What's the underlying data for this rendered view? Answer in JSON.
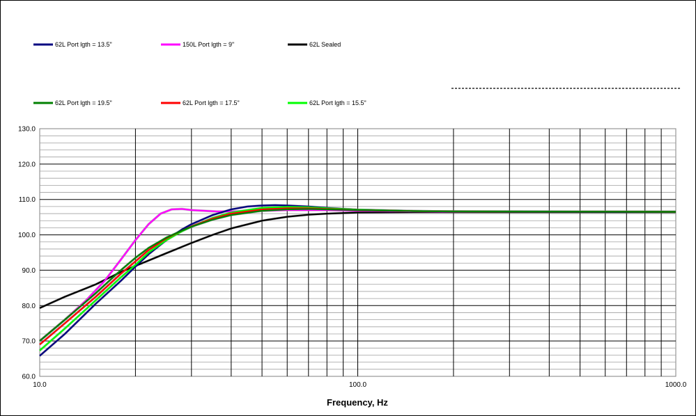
{
  "chart_data": {
    "type": "line",
    "title": "",
    "xlabel": "Frequency, Hz",
    "ylabel": "",
    "x_scale": "log",
    "xlim": [
      10,
      1000
    ],
    "ylim": [
      60,
      130
    ],
    "x_tick_labels": [
      "10.0",
      "100.0",
      "1000.0"
    ],
    "y_tick_labels": [
      "60.0",
      "70.0",
      "80.0",
      "90.0",
      "100.0",
      "110.0",
      "120.0",
      "130.0"
    ],
    "grid": true,
    "legend_position": "top",
    "series": [
      {
        "name": "62L Port lgth = 13.5\"",
        "color": "#000080",
        "points": [
          [
            10,
            65.8
          ],
          [
            12,
            72
          ],
          [
            15,
            80.5
          ],
          [
            18,
            87
          ],
          [
            20,
            91
          ],
          [
            22,
            94.5
          ],
          [
            25,
            98.5
          ],
          [
            28,
            101.5
          ],
          [
            30,
            103
          ],
          [
            35,
            105.6
          ],
          [
            40,
            107.2
          ],
          [
            45,
            108
          ],
          [
            50,
            108.3
          ],
          [
            55,
            108.4
          ],
          [
            60,
            108.3
          ],
          [
            70,
            108
          ],
          [
            80,
            107.6
          ],
          [
            100,
            107.1
          ],
          [
            150,
            106.7
          ],
          [
            200,
            106.6
          ],
          [
            300,
            106.5
          ],
          [
            1000,
            106.5
          ]
        ]
      },
      {
        "name": "150L Port lgth = 9\"",
        "color": "#ff00ff",
        "points": [
          [
            10,
            70
          ],
          [
            12,
            76
          ],
          [
            14,
            81.5
          ],
          [
            16,
            87
          ],
          [
            18,
            93
          ],
          [
            20,
            98.5
          ],
          [
            22,
            103
          ],
          [
            24,
            106
          ],
          [
            26,
            107.2
          ],
          [
            28,
            107.3
          ],
          [
            30,
            107
          ],
          [
            33,
            106.8
          ],
          [
            36,
            106.6
          ],
          [
            40,
            106.6
          ],
          [
            50,
            106.8
          ],
          [
            60,
            107
          ],
          [
            80,
            107
          ],
          [
            100,
            106.8
          ],
          [
            150,
            106.6
          ],
          [
            200,
            106.5
          ],
          [
            1000,
            106.5
          ]
        ]
      },
      {
        "name": "62L Sealed",
        "color": "#000000",
        "points": [
          [
            10,
            79.3
          ],
          [
            12,
            82.5
          ],
          [
            15,
            86
          ],
          [
            18,
            89.5
          ],
          [
            20,
            91.2
          ],
          [
            25,
            94.8
          ],
          [
            30,
            97.7
          ],
          [
            35,
            100
          ],
          [
            40,
            101.8
          ],
          [
            50,
            104
          ],
          [
            60,
            105.1
          ],
          [
            70,
            105.7
          ],
          [
            80,
            106
          ],
          [
            100,
            106.3
          ],
          [
            150,
            106.4
          ],
          [
            1000,
            106.4
          ]
        ]
      },
      {
        "name": "62L Port lgth = 19.5\"",
        "color": "#008000",
        "points": [
          [
            10,
            70
          ],
          [
            12,
            76
          ],
          [
            15,
            83.5
          ],
          [
            18,
            90
          ],
          [
            20,
            93.5
          ],
          [
            22,
            96.3
          ],
          [
            25,
            99.2
          ],
          [
            28,
            101.2
          ],
          [
            30,
            102.3
          ],
          [
            35,
            104.3
          ],
          [
            40,
            105.6
          ],
          [
            50,
            106.8
          ],
          [
            60,
            107.2
          ],
          [
            70,
            107.3
          ],
          [
            80,
            107.2
          ],
          [
            100,
            107
          ],
          [
            150,
            106.7
          ],
          [
            200,
            106.6
          ],
          [
            1000,
            106.5
          ]
        ]
      },
      {
        "name": "62L Port lgth = 17.5\"",
        "color": "#ff0000",
        "points": [
          [
            10,
            69
          ],
          [
            12,
            75
          ],
          [
            15,
            82.5
          ],
          [
            18,
            89
          ],
          [
            20,
            92.5
          ],
          [
            22,
            95.7
          ],
          [
            25,
            99
          ],
          [
            28,
            101.2
          ],
          [
            30,
            102.4
          ],
          [
            35,
            104.6
          ],
          [
            40,
            106
          ],
          [
            50,
            107.2
          ],
          [
            60,
            107.5
          ],
          [
            70,
            107.5
          ],
          [
            80,
            107.3
          ],
          [
            100,
            107
          ],
          [
            150,
            106.7
          ],
          [
            200,
            106.6
          ],
          [
            1000,
            106.5
          ]
        ]
      },
      {
        "name": "62L Port lgth = 15.5\"",
        "color": "#00ff00",
        "points": [
          [
            10,
            67.3
          ],
          [
            12,
            73.5
          ],
          [
            15,
            81.5
          ],
          [
            18,
            88
          ],
          [
            20,
            91.5
          ],
          [
            22,
            95
          ],
          [
            25,
            98.5
          ],
          [
            28,
            101
          ],
          [
            30,
            102.3
          ],
          [
            35,
            104.8
          ],
          [
            40,
            106.3
          ],
          [
            50,
            107.6
          ],
          [
            60,
            107.9
          ],
          [
            70,
            107.8
          ],
          [
            80,
            107.5
          ],
          [
            100,
            107.1
          ],
          [
            150,
            106.7
          ],
          [
            200,
            106.6
          ],
          [
            1000,
            106.5
          ]
        ]
      }
    ]
  }
}
